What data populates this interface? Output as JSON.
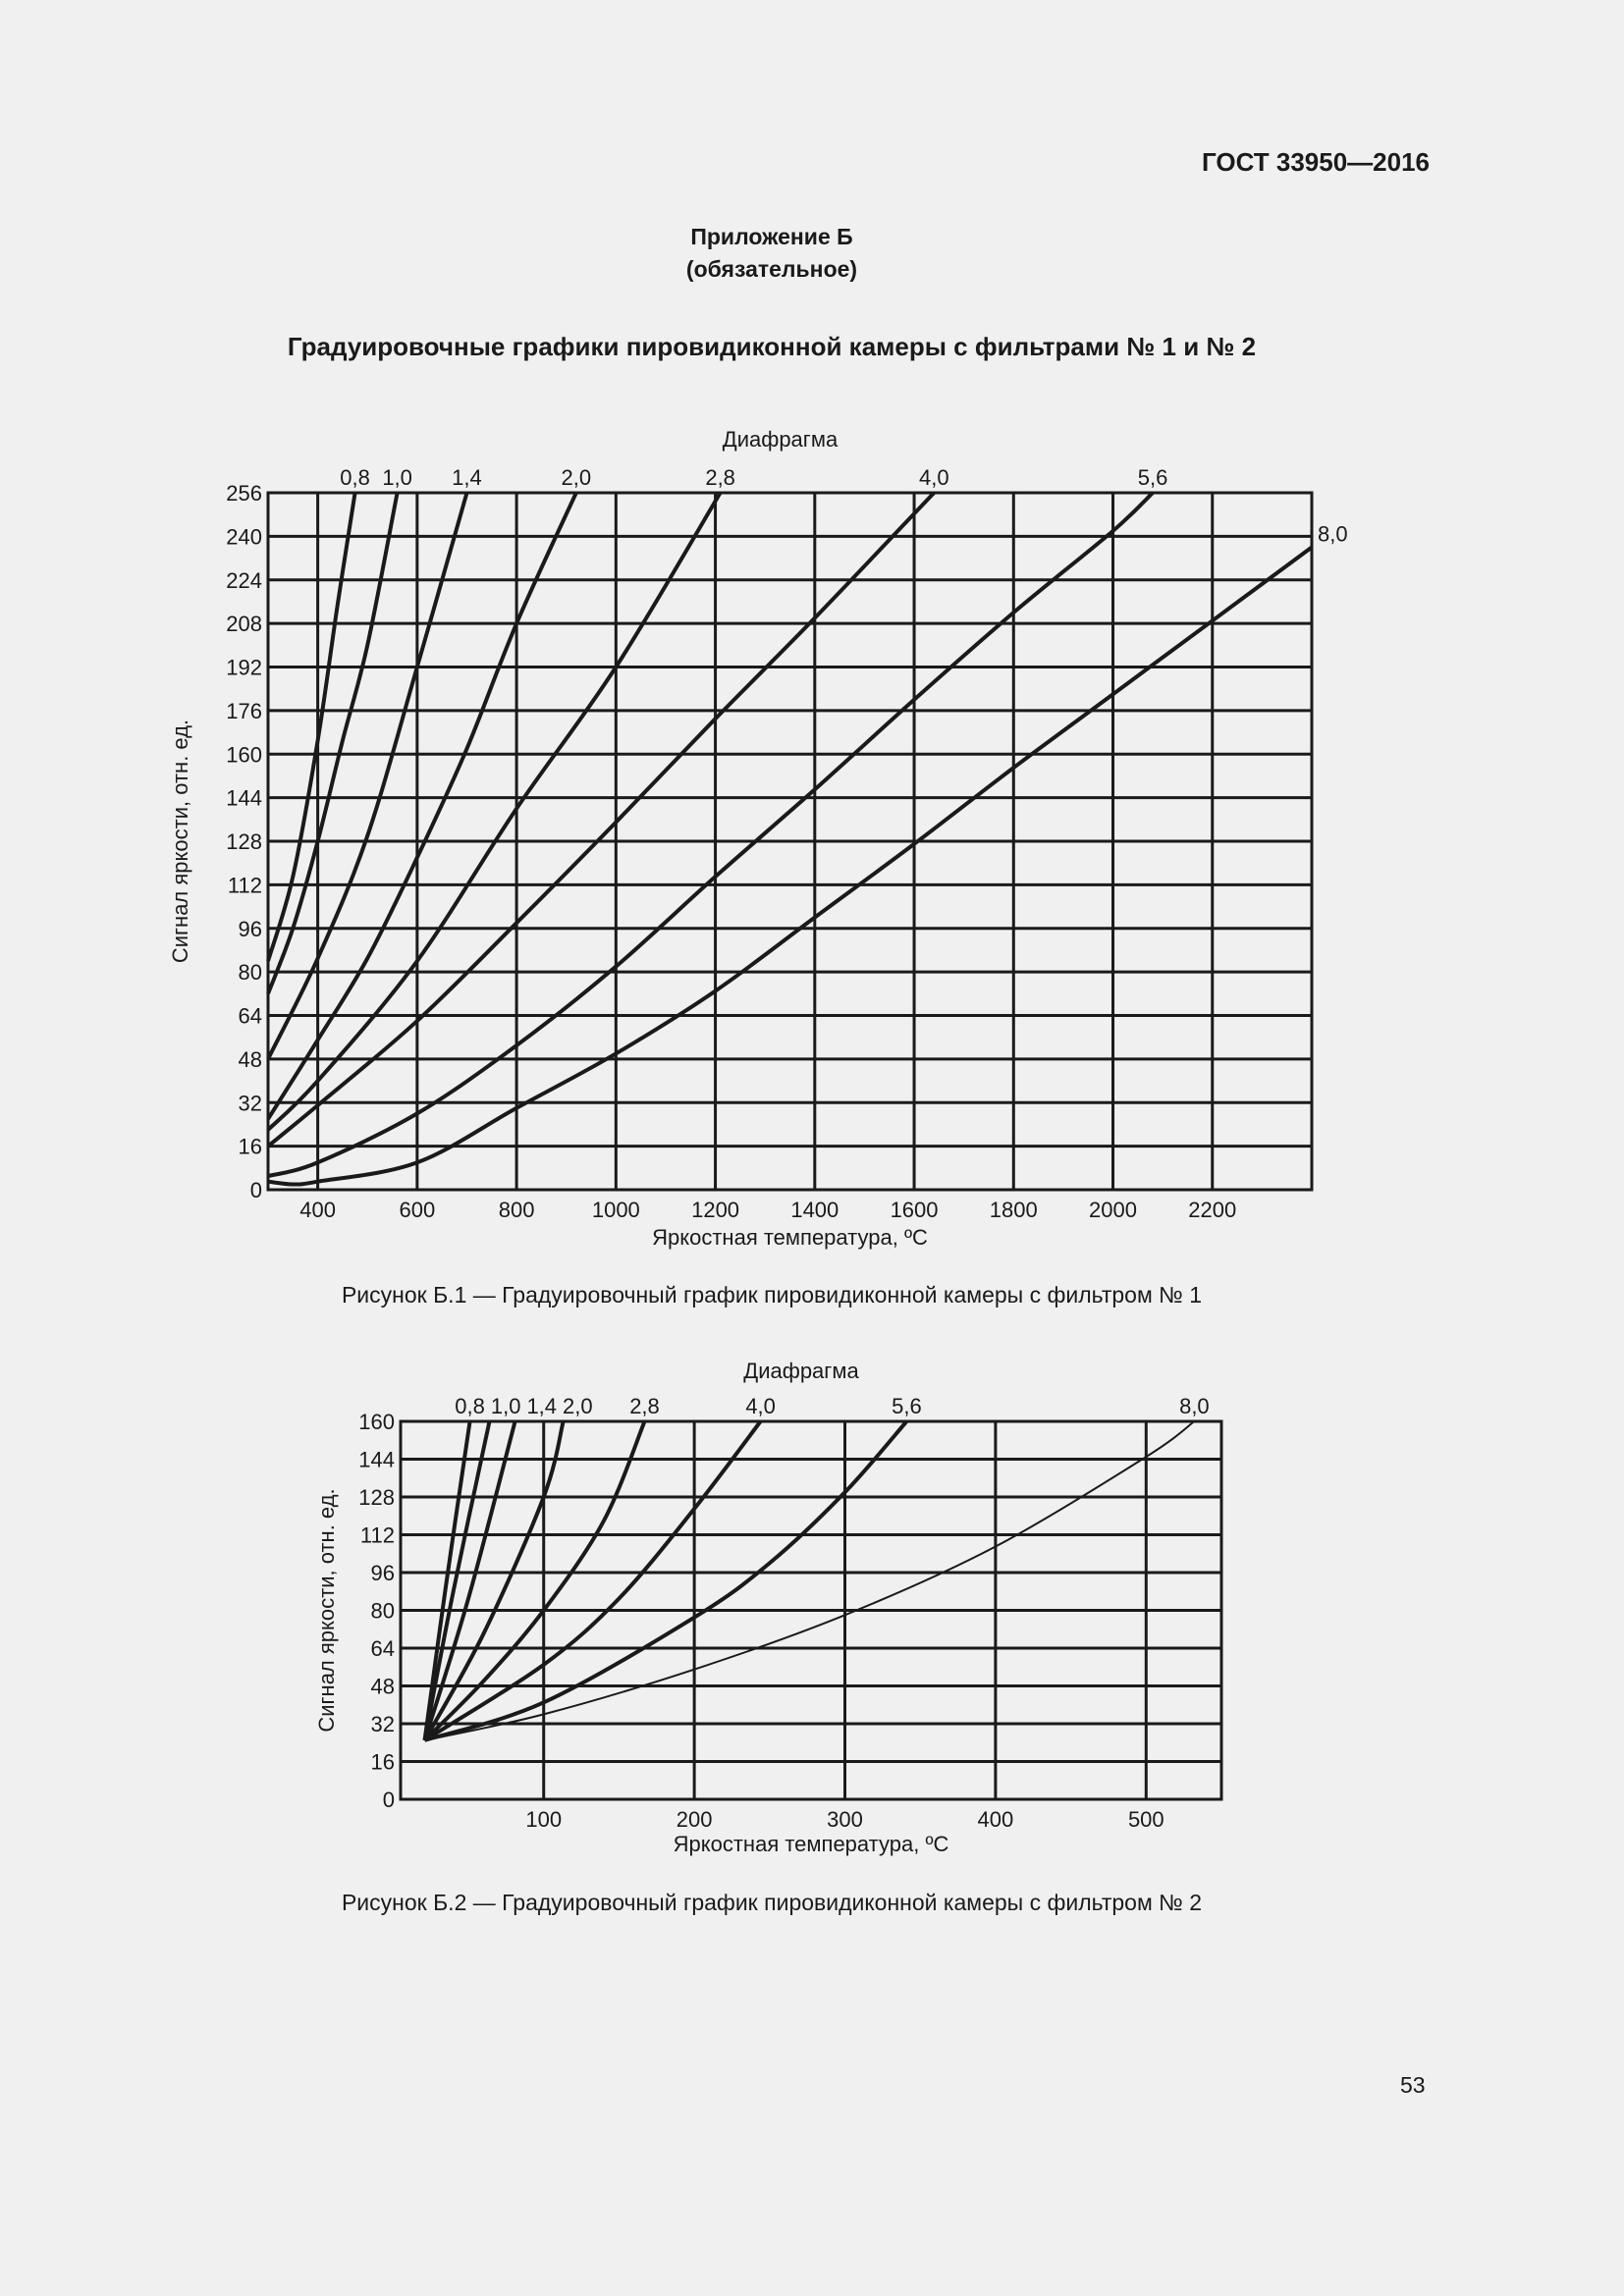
{
  "header": {
    "doc_code": "ГОСТ 33950—2016",
    "annex": "Приложение Б",
    "annex_status": "(обязательное)",
    "title": "Градуировочные графики пировидиконной камеры с фильтрами № 1 и № 2"
  },
  "page_number": "53",
  "chart_data": [
    {
      "type": "line",
      "caption": "Рисунок Б.1 — Градуировочный график пировидиконной камеры с фильтром № 1",
      "legend_title": "Диафрагма",
      "xlabel": "Яркостная температура, ºС",
      "ylabel": "Сигнал яркости, отн. ед.",
      "xlim": [
        300,
        2400
      ],
      "ylim": [
        0,
        256
      ],
      "xticks": [
        400,
        600,
        800,
        1000,
        1200,
        1400,
        1600,
        1800,
        2000,
        2200
      ],
      "yticks": [
        0,
        16,
        32,
        48,
        64,
        80,
        96,
        112,
        128,
        144,
        160,
        176,
        192,
        208,
        224,
        240,
        256
      ],
      "grid": true,
      "series": [
        {
          "name": "0,8",
          "points": [
            [
              300,
              84
            ],
            [
              350,
              115
            ],
            [
              400,
              165
            ],
            [
              440,
              215
            ],
            [
              475,
              256
            ]
          ]
        },
        {
          "name": "1,0",
          "points": [
            [
              300,
              72
            ],
            [
              350,
              96
            ],
            [
              400,
              128
            ],
            [
              450,
              165
            ],
            [
              500,
              200
            ],
            [
              560,
              256
            ]
          ]
        },
        {
          "name": "1,4",
          "points": [
            [
              300,
              48
            ],
            [
              400,
              85
            ],
            [
              500,
              130
            ],
            [
              600,
              192
            ],
            [
              700,
              256
            ]
          ]
        },
        {
          "name": "2,0",
          "points": [
            [
              300,
              26
            ],
            [
              400,
              55
            ],
            [
              500,
              85
            ],
            [
              600,
              122
            ],
            [
              700,
              162
            ],
            [
              800,
              208
            ],
            [
              920,
              256
            ]
          ]
        },
        {
          "name": "2,8",
          "points": [
            [
              300,
              22
            ],
            [
              400,
              40
            ],
            [
              600,
              84
            ],
            [
              800,
              140
            ],
            [
              1000,
              192
            ],
            [
              1210,
              256
            ]
          ]
        },
        {
          "name": "4,0",
          "points": [
            [
              300,
              16
            ],
            [
              400,
              31
            ],
            [
              600,
              62
            ],
            [
              800,
              98
            ],
            [
              1000,
              135
            ],
            [
              1200,
              173
            ],
            [
              1400,
              210
            ],
            [
              1640,
              256
            ]
          ]
        },
        {
          "name": "5,6",
          "points": [
            [
              300,
              5
            ],
            [
              400,
              10
            ],
            [
              600,
              28
            ],
            [
              800,
              53
            ],
            [
              1000,
              82
            ],
            [
              1200,
              115
            ],
            [
              1400,
              147
            ],
            [
              1600,
              180
            ],
            [
              1800,
              212
            ],
            [
              2000,
              242
            ],
            [
              2080,
              256
            ]
          ]
        },
        {
          "name": "8,0",
          "points": [
            [
              300,
              3
            ],
            [
              350,
              2
            ],
            [
              400,
              3
            ],
            [
              600,
              10
            ],
            [
              800,
              30
            ],
            [
              1000,
              50
            ],
            [
              1200,
              73
            ],
            [
              1400,
              100
            ],
            [
              1600,
              127
            ],
            [
              1800,
              155
            ],
            [
              2000,
              182
            ],
            [
              2200,
              209
            ],
            [
              2400,
              236
            ]
          ]
        }
      ]
    },
    {
      "type": "line",
      "caption": "Рисунок Б.2  — Градуировочный график пировидиконной камеры с фильтром № 2",
      "legend_title": "Диафрагма",
      "xlabel": "Яркостная температура, ºС",
      "ylabel": "Сигнал яркости, отн. ед.",
      "xlim": [
        5,
        550
      ],
      "ylim": [
        0,
        160
      ],
      "xticks": [
        100,
        200,
        300,
        400,
        500
      ],
      "yticks": [
        0,
        16,
        32,
        48,
        64,
        80,
        96,
        112,
        128,
        144,
        160
      ],
      "grid": true,
      "series": [
        {
          "name": "0,8",
          "points": [
            [
              21,
              25
            ],
            [
              35,
              90
            ],
            [
              51,
              160
            ]
          ]
        },
        {
          "name": "1,0",
          "points": [
            [
              21,
              25
            ],
            [
              40,
              88
            ],
            [
              64,
              160
            ]
          ]
        },
        {
          "name": "1,4",
          "points": [
            [
              21,
              25
            ],
            [
              50,
              85
            ],
            [
              81,
              160
            ]
          ]
        },
        {
          "name": "2,0",
          "points": [
            [
              21,
              25
            ],
            [
              60,
              70
            ],
            [
              100,
              128
            ],
            [
              113,
              160
            ]
          ]
        },
        {
          "name": "2,8",
          "points": [
            [
              21,
              25
            ],
            [
              60,
              50
            ],
            [
              100,
              80
            ],
            [
              140,
              118
            ],
            [
              167,
              160
            ]
          ]
        },
        {
          "name": "4,0",
          "points": [
            [
              21,
              25
            ],
            [
              100,
              57
            ],
            [
              150,
              85
            ],
            [
              200,
              123
            ],
            [
              244,
              160
            ]
          ]
        },
        {
          "name": "5,6",
          "points": [
            [
              21,
              25
            ],
            [
              100,
              41
            ],
            [
              200,
              77
            ],
            [
              250,
              100
            ],
            [
              300,
              130
            ],
            [
              341,
              160
            ]
          ]
        },
        {
          "name": "8,0",
          "points": [
            [
              21,
              25
            ],
            [
              100,
              36
            ],
            [
              200,
              55
            ],
            [
              300,
              78
            ],
            [
              400,
              107
            ],
            [
              500,
              145
            ],
            [
              532,
              160
            ]
          ]
        }
      ]
    }
  ]
}
